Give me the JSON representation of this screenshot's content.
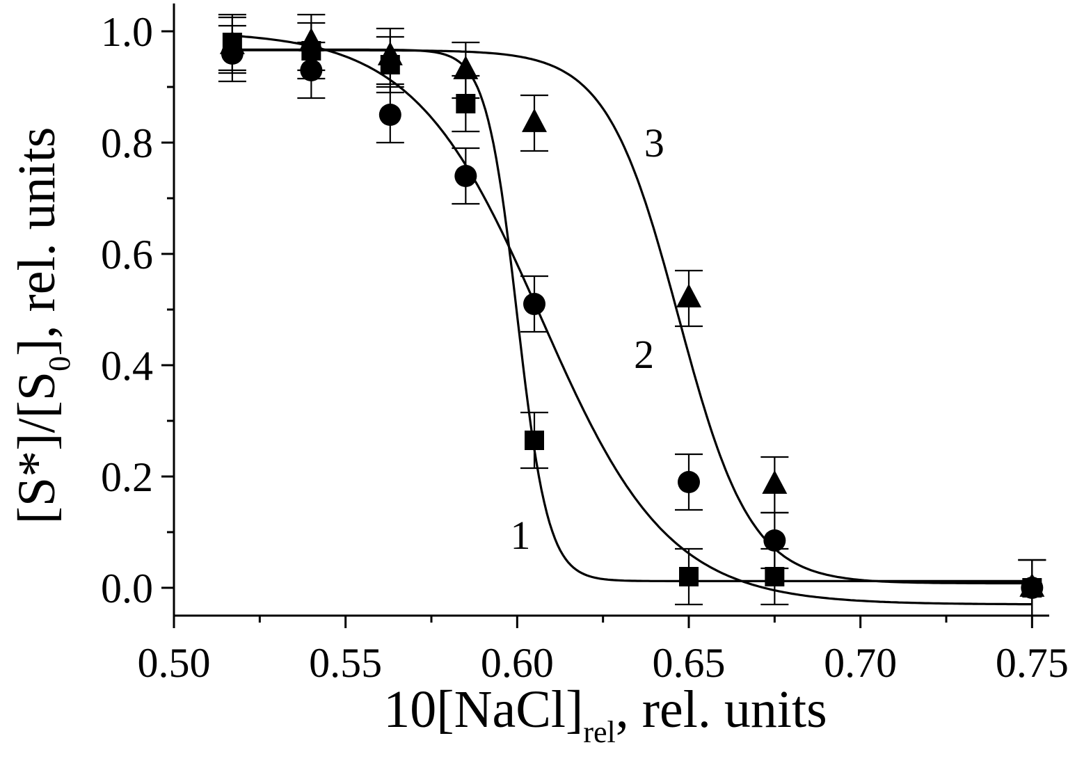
{
  "chart_data": {
    "type": "scatter",
    "title": "",
    "xlabel": {
      "main": "10[NaCl]",
      "sub": "rel",
      "suffix": ", rel. units"
    },
    "ylabel": {
      "prefix": "[S*]/[S",
      "sub": "0",
      "suffix": "], rel. units"
    },
    "xlim": [
      0.5,
      0.755
    ],
    "ylim": [
      -0.05,
      1.05
    ],
    "x_ticks": [
      "0.50",
      "0.55",
      "0.60",
      "0.65",
      "0.70",
      "0.75"
    ],
    "y_ticks": [
      "0.0",
      "0.2",
      "0.4",
      "0.6",
      "0.8",
      "1.0"
    ],
    "grid": false,
    "legend": "none",
    "series": [
      {
        "name": "1",
        "marker": "square",
        "x": [
          0.517,
          0.54,
          0.563,
          0.585,
          0.605,
          0.65,
          0.675,
          0.75
        ],
        "y": [
          0.98,
          0.965,
          0.94,
          0.87,
          0.265,
          0.02,
          0.02,
          0.0
        ],
        "err": [
          0.05,
          0.05,
          0.05,
          0.05,
          0.05,
          0.05,
          0.05,
          0.05
        ],
        "fit": {
          "top": 0.967,
          "bottom": 0.012,
          "x0": 0.6,
          "dx": 0.0045
        },
        "label": {
          "text": "1",
          "x": 0.598,
          "y": 0.07
        }
      },
      {
        "name": "2",
        "marker": "circle",
        "x": [
          0.517,
          0.54,
          0.563,
          0.585,
          0.605,
          0.65,
          0.675,
          0.75
        ],
        "y": [
          0.96,
          0.93,
          0.85,
          0.74,
          0.51,
          0.19,
          0.085,
          0.0
        ],
        "err": [
          0.05,
          0.05,
          0.05,
          0.05,
          0.05,
          0.05,
          0.05,
          0.05
        ],
        "fit": {
          "top": 1.0,
          "bottom": -0.03,
          "x0": 0.607,
          "dx": 0.0185
        },
        "label": {
          "text": "2",
          "x": 0.634,
          "y": 0.395
        }
      },
      {
        "name": "3",
        "marker": "triangle",
        "x": [
          0.517,
          0.54,
          0.563,
          0.585,
          0.605,
          0.65,
          0.675,
          0.75
        ],
        "y": [
          0.975,
          0.98,
          0.955,
          0.93,
          0.835,
          0.52,
          0.185,
          0.0
        ],
        "err": [
          0.05,
          0.05,
          0.05,
          0.05,
          0.05,
          0.05,
          0.05,
          0.05
        ],
        "fit": {
          "top": 0.966,
          "bottom": 0.008,
          "x0": 0.647,
          "dx": 0.0105
        },
        "label": {
          "text": "3",
          "x": 0.637,
          "y": 0.775
        }
      }
    ]
  }
}
